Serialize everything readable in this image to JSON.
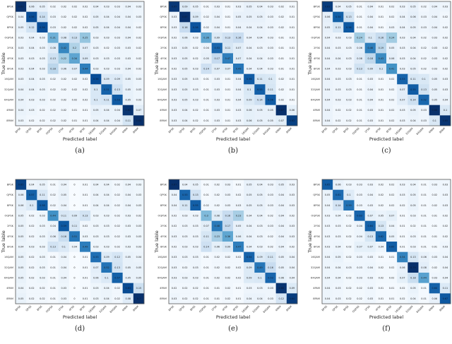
{
  "chart_data": [
    {
      "type": "heatmap",
      "caption": "(a)",
      "xlabel": "Predicted label",
      "ylabel": "True lable",
      "labels": [
        "BPSK",
        "QPSK",
        "8PSK",
        "OQPSK",
        "2FSK",
        "4FSK",
        "8FSK",
        "16QAM",
        "32QAM",
        "64QAM",
        "4PAM",
        "8PAM"
      ],
      "values": [
        [
          0.63,
          0.06,
          0.05,
          0.02,
          0.02,
          0.02,
          0.02,
          0.04,
          0.03,
          0.03,
          0.04,
          0.03
        ],
        [
          0.04,
          0.56,
          0.14,
          0.03,
          0.02,
          0.02,
          0.02,
          0.05,
          0.04,
          0.04,
          0.04,
          0.03
        ],
        [
          0.05,
          0.12,
          0.56,
          0.03,
          0.02,
          0.02,
          0.02,
          0.05,
          0.04,
          0.04,
          0.04,
          0.02
        ],
        [
          0.03,
          0.04,
          0.03,
          0.31,
          0.08,
          0.13,
          0.25,
          0.03,
          0.03,
          0.03,
          0.04,
          0.02
        ],
        [
          0.03,
          0.04,
          0.03,
          0.08,
          0.42,
          0.2,
          0.07,
          0.03,
          0.02,
          0.03,
          0.03,
          0.02
        ],
        [
          0.03,
          0.03,
          0.03,
          0.13,
          0.22,
          0.34,
          0.09,
          0.03,
          0.03,
          0.03,
          0.03,
          0.02
        ],
        [
          0.03,
          0.04,
          0.03,
          0.18,
          0.06,
          0.07,
          0.44,
          0.03,
          0.03,
          0.03,
          0.04,
          0.02
        ],
        [
          0.03,
          0.04,
          0.03,
          0.02,
          0.02,
          0.02,
          0.02,
          0.56,
          0.09,
          0.09,
          0.05,
          0.03
        ],
        [
          0.04,
          0.04,
          0.03,
          0.02,
          0.02,
          0.02,
          0.02,
          0.1,
          0.51,
          0.13,
          0.05,
          0.03
        ],
        [
          0.04,
          0.03,
          0.03,
          0.02,
          0.02,
          0.02,
          0.02,
          0.1,
          0.11,
          0.53,
          0.05,
          0.03
        ],
        [
          0.04,
          0.03,
          0.02,
          0.02,
          0.02,
          0.01,
          0.01,
          0.05,
          0.04,
          0.04,
          0.62,
          0.07
        ],
        [
          0.03,
          0.02,
          0.02,
          0.02,
          0.02,
          0.01,
          0.01,
          0.04,
          0.04,
          0.04,
          0.11,
          0.63
        ]
      ]
    },
    {
      "type": "heatmap",
      "caption": "(b)",
      "xlabel": "Predicted label",
      "ylabel": "True lable",
      "labels": [
        "BPSK",
        "QPSK",
        "8PSK",
        "OQPSK",
        "2FSK",
        "4FSK",
        "8FSK",
        "16QAM",
        "32QAM",
        "64QAM",
        "4PAM",
        "8PAM"
      ],
      "values": [
        [
          0.65,
          0.09,
          0.05,
          0.01,
          0.03,
          0.01,
          0.03,
          0.05,
          0.04,
          0.03,
          0.02,
          0.01
        ],
        [
          0.03,
          0.67,
          0.09,
          0.02,
          0.04,
          0.01,
          0.05,
          0.05,
          0.05,
          0.03,
          0.02,
          0.01
        ],
        [
          0.03,
          0.16,
          0.58,
          0.02,
          0.04,
          0.01,
          0.04,
          0.04,
          0.04,
          0.03,
          0.02,
          0.01
        ],
        [
          0.02,
          0.06,
          0.03,
          0.36,
          0.09,
          0.13,
          0.16,
          0.04,
          0.04,
          0.03,
          0.01,
          0.01
        ],
        [
          0.03,
          0.05,
          0.02,
          0.04,
          0.53,
          0.11,
          0.07,
          0.04,
          0.03,
          0.03,
          0.01,
          0.01
        ],
        [
          0.03,
          0.05,
          0.02,
          0.05,
          0.17,
          0.47,
          0.07,
          0.04,
          0.04,
          0.03,
          0.01,
          0.01
        ],
        [
          0.02,
          0.05,
          0.03,
          0.14,
          0.07,
          0.07,
          0.49,
          0.04,
          0.04,
          0.03,
          0.01,
          0.01
        ],
        [
          0.03,
          0.05,
          0.03,
          0.01,
          0.03,
          0.01,
          0.04,
          0.56,
          0.11,
          0.1,
          0.02,
          0.01
        ],
        [
          0.03,
          0.05,
          0.03,
          0.01,
          0.03,
          0.01,
          0.04,
          0.1,
          0.55,
          0.11,
          0.02,
          0.01
        ],
        [
          0.03,
          0.05,
          0.03,
          0.01,
          0.03,
          0.01,
          0.04,
          0.09,
          0.14,
          0.56,
          0.02,
          0.01
        ],
        [
          0.03,
          0.04,
          0.02,
          0.01,
          0.03,
          0.01,
          0.03,
          0.06,
          0.05,
          0.05,
          0.67,
          0.06
        ],
        [
          0.03,
          0.04,
          0.02,
          0.01,
          0.03,
          0.01,
          0.03,
          0.06,
          0.05,
          0.05,
          0.07,
          0.63
        ]
      ]
    },
    {
      "type": "heatmap",
      "caption": "(c)",
      "xlabel": "Predicted label",
      "ylabel": "True lable",
      "labels": [
        "BPSK",
        "QPSK",
        "8PSK",
        "OQPSK",
        "2FSK",
        "4FSK",
        "8FSK",
        "16QAM",
        "32QAM",
        "64QAM",
        "4PAM",
        "8PAM"
      ],
      "values": [
        [
          0.63,
          0.04,
          0.05,
          0.01,
          0.04,
          0.01,
          0.02,
          0.03,
          0.05,
          0.02,
          0.04,
          0.03
        ],
        [
          0.06,
          0.54,
          0.13,
          0.01,
          0.04,
          0.01,
          0.02,
          0.04,
          0.06,
          0.03,
          0.04,
          0.02
        ],
        [
          0.05,
          0.11,
          0.56,
          0.01,
          0.04,
          0.01,
          0.03,
          0.04,
          0.05,
          0.03,
          0.04,
          0.02
        ],
        [
          0.04,
          0.03,
          0.03,
          0.24,
          0.1,
          0.16,
          0.24,
          0.03,
          0.04,
          0.02,
          0.03,
          0.02
        ],
        [
          0.04,
          0.03,
          0.03,
          0.06,
          0.46,
          0.19,
          0.05,
          0.03,
          0.04,
          0.02,
          0.03,
          0.02
        ],
        [
          0.04,
          0.04,
          0.03,
          0.08,
          0.18,
          0.43,
          0.06,
          0.03,
          0.04,
          0.02,
          0.03,
          0.02
        ],
        [
          0.04,
          0.03,
          0.03,
          0.13,
          0.09,
          0.1,
          0.41,
          0.03,
          0.05,
          0.02,
          0.03,
          0.02
        ],
        [
          0.04,
          0.03,
          0.03,
          0.01,
          0.03,
          0.01,
          0.02,
          0.53,
          0.11,
          0.1,
          0.05,
          0.03
        ],
        [
          0.04,
          0.03,
          0.03,
          0.01,
          0.04,
          0.01,
          0.02,
          0.07,
          0.55,
          0.13,
          0.05,
          0.03
        ],
        [
          0.04,
          0.03,
          0.03,
          0.01,
          0.04,
          0.01,
          0.02,
          0.07,
          0.14,
          0.52,
          0.05,
          0.04
        ],
        [
          0.04,
          0.02,
          0.02,
          0.01,
          0.03,
          0.01,
          0.02,
          0.03,
          0.05,
          0.03,
          0.66,
          0.1
        ],
        [
          0.04,
          0.02,
          0.02,
          0.01,
          0.03,
          0.01,
          0.02,
          0.03,
          0.04,
          0.03,
          0.1,
          0.65
        ]
      ]
    },
    {
      "type": "heatmap",
      "caption": "(d)",
      "xlabel": "Predicted label",
      "ylabel": "True lable",
      "labels": [
        "BPSK",
        "QPSK",
        "8PSK",
        "OQPSK",
        "2FSK",
        "4FSK",
        "8FSK",
        "16QAM",
        "32QAM",
        "64QAM",
        "4PAM",
        "8PAM"
      ],
      "values": [
        [
          0.65,
          0.04,
          0.05,
          0.01,
          0.04,
          0.0,
          0.01,
          0.04,
          0.04,
          0.02,
          0.04,
          0.03
        ],
        [
          0.06,
          0.57,
          0.11,
          0.02,
          0.05,
          0.0,
          0.01,
          0.04,
          0.04,
          0.02,
          0.04,
          0.03
        ],
        [
          0.06,
          0.1,
          0.58,
          0.02,
          0.04,
          0.0,
          0.01,
          0.04,
          0.04,
          0.02,
          0.04,
          0.03
        ],
        [
          0.05,
          0.02,
          0.03,
          0.44,
          0.11,
          0.09,
          0.13,
          0.03,
          0.03,
          0.02,
          0.03,
          0.02
        ],
        [
          0.05,
          0.02,
          0.03,
          0.04,
          0.59,
          0.11,
          0.02,
          0.03,
          0.03,
          0.02,
          0.03,
          0.03
        ],
        [
          0.05,
          0.02,
          0.03,
          0.06,
          0.16,
          0.51,
          0.03,
          0.03,
          0.03,
          0.02,
          0.03,
          0.03
        ],
        [
          0.04,
          0.03,
          0.03,
          0.13,
          0.1,
          0.04,
          0.49,
          0.03,
          0.03,
          0.02,
          0.03,
          0.03
        ],
        [
          0.05,
          0.02,
          0.03,
          0.01,
          0.04,
          0.0,
          0.01,
          0.53,
          0.09,
          0.12,
          0.05,
          0.04
        ],
        [
          0.05,
          0.02,
          0.03,
          0.01,
          0.04,
          0.0,
          0.01,
          0.07,
          0.52,
          0.13,
          0.05,
          0.05
        ],
        [
          0.05,
          0.02,
          0.03,
          0.01,
          0.04,
          0.0,
          0.01,
          0.06,
          0.1,
          0.57,
          0.05,
          0.05
        ],
        [
          0.04,
          0.02,
          0.02,
          0.01,
          0.03,
          0.0,
          0.01,
          0.03,
          0.04,
          0.02,
          0.63,
          0.15
        ],
        [
          0.05,
          0.02,
          0.02,
          0.01,
          0.03,
          0.0,
          0.01,
          0.03,
          0.04,
          0.02,
          0.08,
          0.7
        ]
      ]
    },
    {
      "type": "heatmap",
      "caption": "(e)",
      "xlabel": "Predicted label",
      "ylabel": "True lable",
      "labels": [
        "BPSK",
        "QPSK",
        "8PSK",
        "OQPSK",
        "2FSK",
        "4FSK",
        "8FSK",
        "16QAM",
        "32QAM",
        "64QAM",
        "4PAM",
        "8PAM"
      ],
      "values": [
        [
          0.67,
          0.04,
          0.05,
          0.01,
          0.02,
          0.03,
          0.01,
          0.05,
          0.04,
          0.03,
          0.05,
          0.03
        ],
        [
          0.04,
          0.53,
          0.13,
          0.01,
          0.02,
          0.03,
          0.02,
          0.05,
          0.05,
          0.03,
          0.04,
          0.03
        ],
        [
          0.04,
          0.11,
          0.55,
          0.02,
          0.02,
          0.03,
          0.03,
          0.05,
          0.05,
          0.03,
          0.04,
          0.03
        ],
        [
          0.02,
          0.03,
          0.03,
          0.3,
          0.08,
          0.16,
          0.23,
          0.04,
          0.04,
          0.02,
          0.04,
          0.02
        ],
        [
          0.02,
          0.03,
          0.03,
          0.07,
          0.48,
          0.17,
          0.05,
          0.04,
          0.03,
          0.03,
          0.04,
          0.03
        ],
        [
          0.03,
          0.03,
          0.03,
          0.11,
          0.23,
          0.36,
          0.06,
          0.04,
          0.03,
          0.02,
          0.04,
          0.03
        ],
        [
          0.02,
          0.03,
          0.03,
          0.14,
          0.06,
          0.09,
          0.47,
          0.04,
          0.03,
          0.02,
          0.04,
          0.02
        ],
        [
          0.03,
          0.03,
          0.03,
          0.01,
          0.02,
          0.02,
          0.02,
          0.54,
          0.09,
          0.11,
          0.05,
          0.04
        ],
        [
          0.03,
          0.02,
          0.03,
          0.01,
          0.02,
          0.02,
          0.02,
          0.09,
          0.49,
          0.16,
          0.05,
          0.04
        ],
        [
          0.03,
          0.03,
          0.03,
          0.01,
          0.02,
          0.02,
          0.02,
          0.09,
          0.1,
          0.53,
          0.06,
          0.04
        ],
        [
          0.02,
          0.02,
          0.02,
          0.01,
          0.01,
          0.02,
          0.01,
          0.03,
          0.03,
          0.03,
          0.66,
          0.09
        ],
        [
          0.03,
          0.02,
          0.02,
          0.01,
          0.01,
          0.02,
          0.01,
          0.04,
          0.04,
          0.03,
          0.12,
          0.64
        ]
      ]
    },
    {
      "type": "heatmap",
      "caption": "(f)",
      "xlabel": "Predicted label",
      "ylabel": "True lable",
      "labels": [
        "BPSK",
        "QPSK",
        "8PSK",
        "OQPSK",
        "2FSK",
        "4FSK",
        "8FSK",
        "16QAM",
        "32QAM",
        "64QAM",
        "4PAM",
        "8PAM"
      ],
      "values": [
        [
          0.65,
          0.06,
          0.03,
          0.03,
          0.03,
          0.02,
          0.02,
          0.03,
          0.04,
          0.01,
          0.03,
          0.03
        ],
        [
          0.05,
          0.61,
          0.1,
          0.03,
          0.04,
          0.02,
          0.02,
          0.03,
          0.05,
          0.01,
          0.02,
          0.03
        ],
        [
          0.04,
          0.14,
          0.59,
          0.03,
          0.03,
          0.02,
          0.02,
          0.02,
          0.05,
          0.01,
          0.02,
          0.03
        ],
        [
          0.03,
          0.04,
          0.02,
          0.63,
          0.07,
          0.05,
          0.07,
          0.01,
          0.03,
          0.01,
          0.01,
          0.02
        ],
        [
          0.03,
          0.03,
          0.02,
          0.04,
          0.64,
          0.13,
          0.04,
          0.01,
          0.02,
          0.01,
          0.01,
          0.02
        ],
        [
          0.03,
          0.03,
          0.02,
          0.04,
          0.13,
          0.62,
          0.05,
          0.01,
          0.03,
          0.01,
          0.01,
          0.02
        ],
        [
          0.03,
          0.04,
          0.02,
          0.07,
          0.07,
          0.04,
          0.65,
          0.01,
          0.03,
          0.01,
          0.01,
          0.03
        ],
        [
          0.04,
          0.05,
          0.02,
          0.03,
          0.03,
          0.01,
          0.01,
          0.54,
          0.13,
          0.06,
          0.03,
          0.04
        ],
        [
          0.04,
          0.04,
          0.03,
          0.03,
          0.04,
          0.02,
          0.02,
          0.06,
          0.79,
          0.08,
          0.02,
          0.04
        ],
        [
          0.04,
          0.04,
          0.02,
          0.03,
          0.03,
          0.02,
          0.02,
          0.07,
          0.18,
          0.44,
          0.03,
          0.04
        ],
        [
          0.04,
          0.03,
          0.02,
          0.02,
          0.03,
          0.01,
          0.01,
          0.02,
          0.05,
          0.01,
          0.64,
          0.11
        ],
        [
          0.04,
          0.03,
          0.02,
          0.02,
          0.03,
          0.01,
          0.01,
          0.02,
          0.04,
          0.01,
          0.06,
          0.67
        ]
      ]
    }
  ],
  "colormap": "Blues",
  "colors": {
    "low": "#f7fbff",
    "high": "#08306b"
  }
}
